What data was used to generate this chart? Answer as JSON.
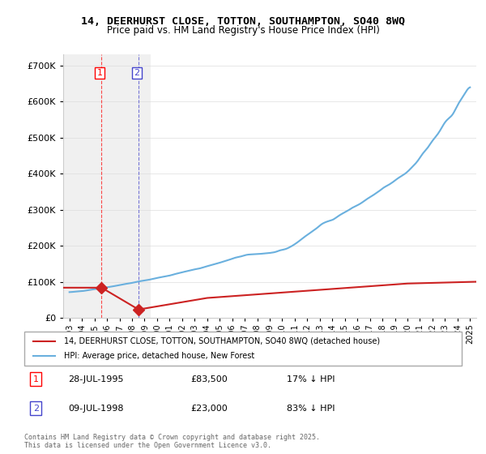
{
  "title_line1": "14, DEERHURST CLOSE, TOTTON, SOUTHAMPTON, SO40 8WQ",
  "title_line2": "Price paid vs. HM Land Registry's House Price Index (HPI)",
  "legend_label_red": "14, DEERHURST CLOSE, TOTTON, SOUTHAMPTON, SO40 8WQ (detached house)",
  "legend_label_blue": "HPI: Average price, detached house, New Forest",
  "transaction1_label": "1",
  "transaction1_date": "28-JUL-1995",
  "transaction1_price": "£83,500",
  "transaction1_hpi": "17% ↓ HPI",
  "transaction1_year": 1995.57,
  "transaction1_value": 83500,
  "transaction2_label": "2",
  "transaction2_date": "09-JUL-1998",
  "transaction2_price": "£23,000",
  "transaction2_hpi": "83% ↓ HPI",
  "transaction2_year": 1998.52,
  "transaction2_value": 23000,
  "copyright_text": "Contains HM Land Registry data © Crown copyright and database right 2025.\nThis data is licensed under the Open Government Licence v3.0.",
  "background_color": "#ffffff",
  "hatch_color": "#e0e0e0",
  "hatch_region_end": 1999.5,
  "ylim_min": 0,
  "ylim_max": 730000,
  "xlim_min": 1992.5,
  "xlim_max": 2025.5
}
